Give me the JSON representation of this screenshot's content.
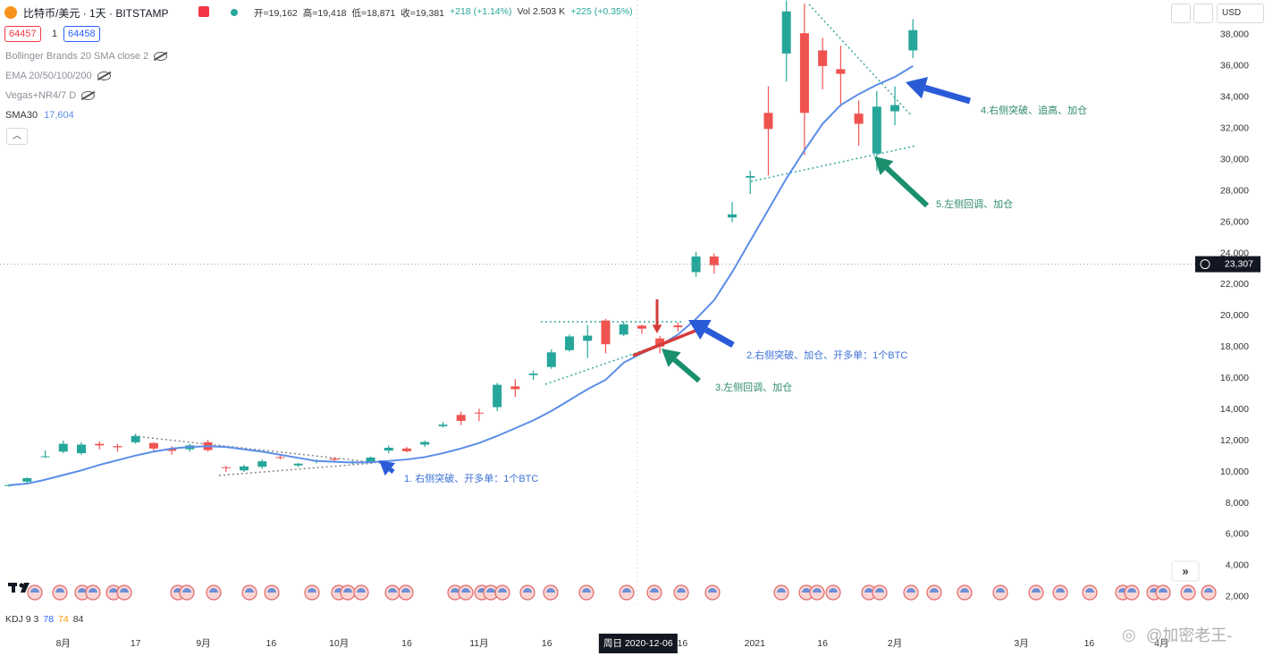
{
  "header": {
    "symbol": "比特币/美元 · 1天 · BITSTAMP",
    "ohlc": [
      "开=19,162",
      "高=19,418",
      "低=18,871",
      "收=19,381",
      "+218 (+1.14%)",
      "Vol 2.503 K",
      "+225 (+0.35%)"
    ],
    "sell": "64457",
    "qty": "1",
    "buy": "64458",
    "currency": "USD"
  },
  "indicators": [
    "Bollinger Brands 20 SMA close 2",
    "EMA 20/50/100/200",
    "Vegas+NR4/7 D"
  ],
  "sma_value": "17,604",
  "kdj": {
    "name": "KDJ 9 3",
    "k": "78",
    "d": "74",
    "j": "84"
  },
  "annotations": [
    "1. 右侧突破、开多单：1个BTC",
    "2.右侧突破、加仓、开多单：1个BTC",
    "3.左侧回调、加仓",
    "4.右侧突破、追高、加仓",
    "5.左侧回调、加仓"
  ],
  "watermark": "@加密老王-",
  "chart_data": {
    "type": "candlestick",
    "x": [
      "2020-07-20",
      "2020-07-24",
      "2020-07-28",
      "2020-08-01",
      "2020-08-05",
      "2020-08-09",
      "2020-08-13",
      "2020-08-17",
      "2020-08-21",
      "2020-08-25",
      "2020-08-29",
      "2020-09-02",
      "2020-09-06",
      "2020-09-10",
      "2020-09-14",
      "2020-09-18",
      "2020-09-22",
      "2020-09-26",
      "2020-09-30",
      "2020-10-04",
      "2020-10-08",
      "2020-10-12",
      "2020-10-16",
      "2020-10-20",
      "2020-10-24",
      "2020-10-28",
      "2020-11-01",
      "2020-11-05",
      "2020-11-09",
      "2020-11-13",
      "2020-11-17",
      "2020-11-21",
      "2020-11-25",
      "2020-11-29",
      "2020-12-03",
      "2020-12-07",
      "2020-12-11",
      "2020-12-15",
      "2020-12-19",
      "2020-12-23",
      "2020-12-27",
      "2020-12-31",
      "2021-01-04",
      "2021-01-08",
      "2021-01-12",
      "2021-01-16",
      "2021-01-20",
      "2021-01-24",
      "2021-01-28",
      "2021-02-01",
      "2021-02-05"
    ],
    "open": [
      9100,
      9380,
      10950,
      11300,
      11200,
      11800,
      11650,
      11900,
      11850,
      11500,
      11450,
      11900,
      10300,
      10100,
      10330,
      10950,
      10420,
      10690,
      10850,
      10580,
      10660,
      11370,
      11500,
      11750,
      12930,
      13650,
      13800,
      14150,
      15480,
      16200,
      16720,
      17800,
      18400,
      19700,
      18800,
      19370,
      18550,
      19380,
      22800,
      23800,
      26300,
      28850,
      33000,
      36800,
      38100,
      37000,
      35800,
      32950,
      30400,
      33100,
      37000
    ],
    "high": [
      9220,
      9650,
      11380,
      12000,
      11900,
      11950,
      11800,
      12450,
      11900,
      11650,
      11800,
      12050,
      10380,
      10450,
      10800,
      11050,
      10570,
      10800,
      10950,
      10700,
      10990,
      11700,
      11600,
      12000,
      13200,
      13860,
      14050,
      15700,
      15950,
      16480,
      17860,
      18800,
      19400,
      19800,
      19650,
      19420,
      18700,
      19570,
      24100,
      24000,
      27300,
      29300,
      34700,
      40200,
      40000,
      37800,
      37300,
      33800,
      34400,
      34700,
      39000
    ],
    "low": [
      9050,
      9300,
      10900,
      11200,
      11100,
      11450,
      11300,
      11800,
      11300,
      11100,
      11300,
      11300,
      10000,
      10000,
      10200,
      10800,
      10300,
      10550,
      10650,
      10500,
      10600,
      11200,
      11250,
      11600,
      12850,
      13000,
      13250,
      13900,
      14800,
      15900,
      16600,
      17700,
      17300,
      17600,
      18700,
      18850,
      17600,
      19000,
      22500,
      22700,
      26000,
      27800,
      29000,
      35000,
      30300,
      34500,
      33400,
      30900,
      29300,
      32200,
      36500
    ],
    "close": [
      9160,
      9600,
      11000,
      11800,
      11750,
      11700,
      11580,
      12300,
      11500,
      11350,
      11700,
      11400,
      10250,
      10350,
      10680,
      10930,
      10530,
      10730,
      10780,
      10670,
      10920,
      11550,
      11330,
      11920,
      13030,
      13270,
      13740,
      15580,
      15300,
      16300,
      17660,
      18680,
      18730,
      18180,
      19450,
      19180,
      18030,
      19270,
      23800,
      23240,
      26500,
      28950,
      31970,
      39500,
      33000,
      36000,
      35500,
      32300,
      33400,
      33500,
      38300
    ],
    "up_color": "#26a69a",
    "down_color": "#ef5350",
    "lines": [
      {
        "name": "SMA30",
        "color": "#5b8de8",
        "values": [
          9150,
          9250,
          9500,
          9800,
          10100,
          10450,
          10750,
          11050,
          11300,
          11500,
          11600,
          11650,
          11600,
          11450,
          11300,
          11100,
          10900,
          10700,
          10650,
          10600,
          10620,
          10700,
          10800,
          10950,
          11200,
          11500,
          11850,
          12300,
          12800,
          13300,
          13900,
          14600,
          15300,
          15900,
          17000,
          17600,
          18100,
          18800,
          19800,
          21000,
          22800,
          24800,
          26800,
          28800,
          30600,
          32300,
          33500,
          34200,
          34800,
          35300,
          36000
        ]
      }
    ],
    "xlim": [
      "2020-07-18",
      "2021-04-13"
    ],
    "xticks": [
      {
        "value": "2020-08-01",
        "label": "8月"
      },
      {
        "value": "2020-08-17",
        "label": "17"
      },
      {
        "value": "2020-09-01",
        "label": "9月"
      },
      {
        "value": "2020-09-16",
        "label": "16"
      },
      {
        "value": "2020-10-01",
        "label": "10月"
      },
      {
        "value": "2020-10-16",
        "label": "16"
      },
      {
        "value": "2020-11-01",
        "label": "11月"
      },
      {
        "value": "2020-11-16",
        "label": "16"
      },
      {
        "value": "2020-12-16",
        "label": "16"
      },
      {
        "value": "2021-01-01",
        "label": "2021"
      },
      {
        "value": "2021-01-16",
        "label": "16"
      },
      {
        "value": "2021-02-01",
        "label": "2月"
      },
      {
        "value": "2021-03-01",
        "label": "3月"
      },
      {
        "value": "2021-03-16",
        "label": "16"
      },
      {
        "value": "2021-04-01",
        "label": "4月"
      }
    ],
    "ylim": [
      1300,
      40230
    ],
    "yticks": [
      {
        "value": 2000,
        "label": "2,000"
      },
      {
        "value": 4000,
        "label": "4,000"
      },
      {
        "value": 6000,
        "label": "6,000"
      },
      {
        "value": 8000,
        "label": "8,000"
      },
      {
        "value": 10000,
        "label": "10,000"
      },
      {
        "value": 12000,
        "label": "12,000"
      },
      {
        "value": 14000,
        "label": "14,000"
      },
      {
        "value": 16000,
        "label": "16,000"
      },
      {
        "value": 18000,
        "label": "18,000"
      },
      {
        "value": 20000,
        "label": "20,000"
      },
      {
        "value": 22000,
        "label": "22,000"
      },
      {
        "value": 24000,
        "label": "24,000"
      },
      {
        "value": 26000,
        "label": "26,000"
      },
      {
        "value": 28000,
        "label": "28,000"
      },
      {
        "value": 30000,
        "label": "30,000"
      },
      {
        "value": 32000,
        "label": "32,000"
      },
      {
        "value": 34000,
        "label": "34,000"
      },
      {
        "value": 36000,
        "label": "36,000"
      },
      {
        "value": 38000,
        "label": "38,000"
      }
    ],
    "grid": false,
    "price_line": {
      "value": 23307,
      "label": "23,307"
    },
    "crosshair_x": {
      "value": "2020-12-06",
      "label": "周日 2020-12-06"
    }
  }
}
